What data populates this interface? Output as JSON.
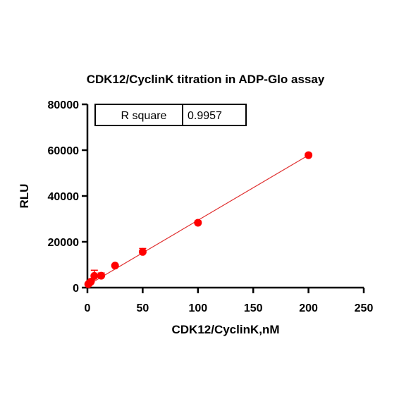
{
  "chart_data": {
    "type": "scatter",
    "title": "CDK12/CyclinK titration in ADP-Glo assay",
    "xlabel": "CDK12/CyclinK,nM",
    "ylabel": "RLU",
    "xlim": [
      0,
      250
    ],
    "ylim": [
      0,
      80000
    ],
    "x_ticks": [
      "0",
      "50",
      "100",
      "150",
      "200",
      "250"
    ],
    "y_ticks": [
      "0",
      "20000",
      "40000",
      "60000",
      "80000"
    ],
    "colors": {
      "points": "#ff0000",
      "fit_line": "#e03030",
      "axis": "#000000"
    },
    "grid": false,
    "points": [
      {
        "x": 0.78,
        "y": 1500,
        "err": 400
      },
      {
        "x": 1.56,
        "y": 1900,
        "err": 400
      },
      {
        "x": 3.125,
        "y": 2600,
        "err": 500
      },
      {
        "x": 6.25,
        "y": 5100,
        "err": 2500
      },
      {
        "x": 12.5,
        "y": 5200,
        "err": 1200
      },
      {
        "x": 25,
        "y": 9600,
        "err": 600
      },
      {
        "x": 50,
        "y": 15600,
        "err": 1500
      },
      {
        "x": 100,
        "y": 28300,
        "err": 800
      },
      {
        "x": 200,
        "y": 57800,
        "err": 800
      }
    ],
    "fit_line": {
      "x": [
        0,
        200
      ],
      "y": [
        1000,
        57800
      ]
    },
    "annotation": {
      "label": "R square",
      "value": "0.9957"
    }
  }
}
